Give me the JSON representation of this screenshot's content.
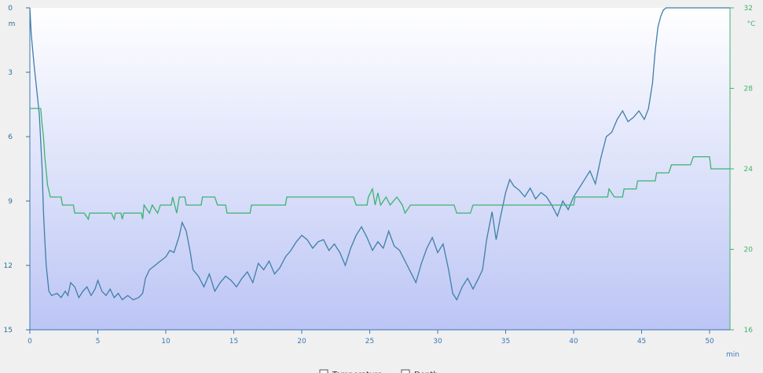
{
  "chart_data": {
    "type": "line",
    "x_unit": "min",
    "x_ticks": [
      0,
      5,
      10,
      15,
      20,
      25,
      30,
      35,
      40,
      45,
      50
    ],
    "xlim": [
      0,
      51.5
    ],
    "left_axis": {
      "unit": "m",
      "ticks": [
        0,
        3,
        6,
        9,
        12,
        15
      ],
      "ylim": [
        0,
        15
      ],
      "inverted": true,
      "color": "#2a6f9e"
    },
    "right_axis": {
      "unit": "°C",
      "ticks": [
        16,
        20,
        24,
        28,
        32
      ],
      "ylim": [
        16,
        32
      ],
      "color": "#3cb371"
    },
    "grid": false,
    "legend_position": "bottom-center",
    "series": [
      {
        "axis": "left",
        "color": "#3f7fa8",
        "points": [
          [
            0,
            0
          ],
          [
            0.1,
            1.2
          ],
          [
            0.3,
            2.6
          ],
          [
            0.5,
            3.8
          ],
          [
            0.7,
            5.0
          ],
          [
            0.9,
            7.5
          ],
          [
            1.0,
            9.5
          ],
          [
            1.1,
            10.8
          ],
          [
            1.2,
            12.0
          ],
          [
            1.4,
            13.2
          ],
          [
            1.6,
            13.4
          ],
          [
            2.0,
            13.3
          ],
          [
            2.3,
            13.5
          ],
          [
            2.6,
            13.2
          ],
          [
            2.8,
            13.4
          ],
          [
            3.0,
            12.8
          ],
          [
            3.3,
            13.0
          ],
          [
            3.6,
            13.5
          ],
          [
            3.9,
            13.2
          ],
          [
            4.2,
            13.0
          ],
          [
            4.5,
            13.4
          ],
          [
            4.8,
            13.1
          ],
          [
            5.0,
            12.7
          ],
          [
            5.3,
            13.2
          ],
          [
            5.6,
            13.4
          ],
          [
            5.9,
            13.1
          ],
          [
            6.2,
            13.5
          ],
          [
            6.5,
            13.3
          ],
          [
            6.8,
            13.6
          ],
          [
            7.2,
            13.4
          ],
          [
            7.6,
            13.6
          ],
          [
            8.0,
            13.5
          ],
          [
            8.3,
            13.3
          ],
          [
            8.5,
            12.6
          ],
          [
            8.8,
            12.2
          ],
          [
            9.2,
            12.0
          ],
          [
            9.6,
            11.8
          ],
          [
            10.0,
            11.6
          ],
          [
            10.3,
            11.3
          ],
          [
            10.6,
            11.4
          ],
          [
            11.0,
            10.6
          ],
          [
            11.2,
            10.0
          ],
          [
            11.5,
            10.4
          ],
          [
            11.8,
            11.4
          ],
          [
            12.0,
            12.2
          ],
          [
            12.4,
            12.5
          ],
          [
            12.8,
            13.0
          ],
          [
            13.2,
            12.4
          ],
          [
            13.6,
            13.2
          ],
          [
            14.0,
            12.8
          ],
          [
            14.4,
            12.5
          ],
          [
            14.8,
            12.7
          ],
          [
            15.2,
            13.0
          ],
          [
            15.6,
            12.6
          ],
          [
            16.0,
            12.3
          ],
          [
            16.4,
            12.8
          ],
          [
            16.8,
            11.9
          ],
          [
            17.2,
            12.2
          ],
          [
            17.6,
            11.8
          ],
          [
            18.0,
            12.4
          ],
          [
            18.4,
            12.1
          ],
          [
            18.8,
            11.6
          ],
          [
            19.2,
            11.3
          ],
          [
            19.6,
            10.9
          ],
          [
            20.0,
            10.6
          ],
          [
            20.4,
            10.8
          ],
          [
            20.8,
            11.2
          ],
          [
            21.2,
            10.9
          ],
          [
            21.6,
            10.8
          ],
          [
            22.0,
            11.3
          ],
          [
            22.4,
            11.0
          ],
          [
            22.8,
            11.4
          ],
          [
            23.2,
            12.0
          ],
          [
            23.6,
            11.2
          ],
          [
            24.0,
            10.6
          ],
          [
            24.4,
            10.2
          ],
          [
            24.8,
            10.7
          ],
          [
            25.2,
            11.3
          ],
          [
            25.6,
            10.9
          ],
          [
            26.0,
            11.2
          ],
          [
            26.4,
            10.4
          ],
          [
            26.8,
            11.1
          ],
          [
            27.2,
            11.3
          ],
          [
            27.6,
            11.8
          ],
          [
            28.0,
            12.3
          ],
          [
            28.4,
            12.8
          ],
          [
            28.8,
            11.9
          ],
          [
            29.2,
            11.2
          ],
          [
            29.6,
            10.7
          ],
          [
            30.0,
            11.4
          ],
          [
            30.4,
            11.0
          ],
          [
            30.8,
            12.2
          ],
          [
            31.1,
            13.3
          ],
          [
            31.4,
            13.6
          ],
          [
            31.8,
            13.0
          ],
          [
            32.2,
            12.6
          ],
          [
            32.6,
            13.1
          ],
          [
            33.0,
            12.6
          ],
          [
            33.3,
            12.2
          ],
          [
            33.6,
            10.8
          ],
          [
            34.0,
            9.5
          ],
          [
            34.3,
            10.8
          ],
          [
            34.6,
            9.8
          ],
          [
            35.0,
            8.6
          ],
          [
            35.3,
            8.0
          ],
          [
            35.6,
            8.3
          ],
          [
            36.0,
            8.5
          ],
          [
            36.4,
            8.8
          ],
          [
            36.8,
            8.4
          ],
          [
            37.2,
            8.9
          ],
          [
            37.6,
            8.6
          ],
          [
            38.0,
            8.8
          ],
          [
            38.4,
            9.2
          ],
          [
            38.8,
            9.7
          ],
          [
            39.2,
            9.0
          ],
          [
            39.6,
            9.4
          ],
          [
            40.0,
            8.8
          ],
          [
            40.4,
            8.4
          ],
          [
            40.8,
            8.0
          ],
          [
            41.2,
            7.6
          ],
          [
            41.6,
            8.2
          ],
          [
            42.0,
            7.0
          ],
          [
            42.4,
            6.0
          ],
          [
            42.8,
            5.8
          ],
          [
            43.2,
            5.2
          ],
          [
            43.6,
            4.8
          ],
          [
            44.0,
            5.3
          ],
          [
            44.4,
            5.1
          ],
          [
            44.8,
            4.8
          ],
          [
            45.2,
            5.2
          ],
          [
            45.5,
            4.7
          ],
          [
            45.8,
            3.5
          ],
          [
            46.0,
            2.0
          ],
          [
            46.2,
            0.9
          ],
          [
            46.4,
            0.4
          ],
          [
            46.6,
            0.1
          ],
          [
            46.8,
            0
          ],
          [
            51.5,
            0
          ]
        ]
      },
      {
        "axis": "right",
        "color": "#3cb371",
        "points": [
          [
            0,
            27
          ],
          [
            0.8,
            27
          ],
          [
            0.9,
            26.2
          ],
          [
            1.0,
            25.6
          ],
          [
            1.1,
            24.6
          ],
          [
            1.3,
            23.2
          ],
          [
            1.5,
            22.6
          ],
          [
            2.3,
            22.6
          ],
          [
            2.4,
            22.2
          ],
          [
            3.2,
            22.2
          ],
          [
            3.3,
            21.8
          ],
          [
            4.0,
            21.8
          ],
          [
            4.3,
            21.5
          ],
          [
            4.4,
            21.8
          ],
          [
            6.0,
            21.8
          ],
          [
            6.2,
            21.5
          ],
          [
            6.3,
            21.8
          ],
          [
            6.7,
            21.8
          ],
          [
            6.8,
            21.5
          ],
          [
            6.9,
            21.8
          ],
          [
            8.2,
            21.8
          ],
          [
            8.3,
            21.5
          ],
          [
            8.4,
            22.2
          ],
          [
            8.8,
            21.8
          ],
          [
            9.0,
            22.2
          ],
          [
            9.4,
            21.8
          ],
          [
            9.6,
            22.2
          ],
          [
            10.4,
            22.2
          ],
          [
            10.5,
            22.6
          ],
          [
            10.8,
            21.8
          ],
          [
            11.0,
            22.6
          ],
          [
            11.4,
            22.6
          ],
          [
            11.5,
            22.2
          ],
          [
            12.6,
            22.2
          ],
          [
            12.7,
            22.6
          ],
          [
            13.6,
            22.6
          ],
          [
            13.8,
            22.2
          ],
          [
            14.4,
            22.2
          ],
          [
            14.5,
            21.8
          ],
          [
            16.2,
            21.8
          ],
          [
            16.3,
            22.2
          ],
          [
            18.8,
            22.2
          ],
          [
            18.9,
            22.6
          ],
          [
            23.8,
            22.6
          ],
          [
            24.0,
            22.2
          ],
          [
            24.8,
            22.2
          ],
          [
            24.9,
            22.6
          ],
          [
            25.2,
            23.0
          ],
          [
            25.4,
            22.2
          ],
          [
            25.6,
            22.8
          ],
          [
            25.8,
            22.2
          ],
          [
            26.2,
            22.6
          ],
          [
            26.5,
            22.2
          ],
          [
            27.0,
            22.6
          ],
          [
            27.4,
            22.2
          ],
          [
            27.6,
            21.8
          ],
          [
            28.0,
            22.2
          ],
          [
            31.2,
            22.2
          ],
          [
            31.4,
            21.8
          ],
          [
            32.4,
            21.8
          ],
          [
            32.6,
            22.2
          ],
          [
            40.0,
            22.2
          ],
          [
            40.1,
            22.6
          ],
          [
            42.5,
            22.6
          ],
          [
            42.6,
            23.0
          ],
          [
            43.0,
            22.6
          ],
          [
            43.6,
            22.6
          ],
          [
            43.7,
            23.0
          ],
          [
            44.6,
            23.0
          ],
          [
            44.7,
            23.4
          ],
          [
            46.0,
            23.4
          ],
          [
            46.1,
            23.8
          ],
          [
            47.0,
            23.8
          ],
          [
            47.2,
            24.2
          ],
          [
            48.6,
            24.2
          ],
          [
            48.8,
            24.6
          ],
          [
            50.0,
            24.6
          ],
          [
            50.1,
            24.0
          ],
          [
            51.5,
            24.0
          ]
        ]
      }
    ]
  },
  "legend": [
    "Temperature",
    "Depth"
  ]
}
